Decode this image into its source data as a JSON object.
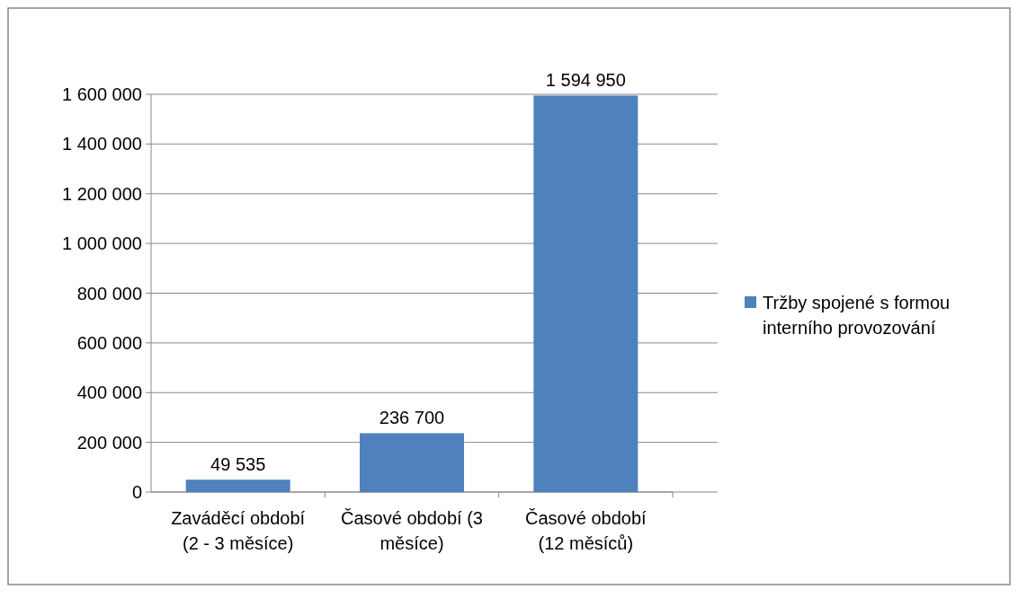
{
  "chart_data": {
    "type": "bar",
    "categories": [
      "Zaváděcí období (2 - 3 měsíce)",
      "Časové období (3 měsíce)",
      "Časové období (12 měsíců)"
    ],
    "series": [
      {
        "name": "Tržby spojené s formou interního provozování",
        "color": "#4f81bd",
        "values": [
          49535,
          236700,
          1594950
        ],
        "value_labels": [
          "49 535",
          "236 700",
          "1 594 950"
        ]
      }
    ],
    "ylim": [
      0,
      1600000
    ],
    "yticks": [
      {
        "value": 0,
        "label": "0"
      },
      {
        "value": 200000,
        "label": "200 000"
      },
      {
        "value": 400000,
        "label": "400 000"
      },
      {
        "value": 600000,
        "label": "600 000"
      },
      {
        "value": 800000,
        "label": "800 000"
      },
      {
        "value": 1000000,
        "label": "1 000 000"
      },
      {
        "value": 1200000,
        "label": "1 200 000"
      },
      {
        "value": 1400000,
        "label": "1 400 000"
      },
      {
        "value": 1600000,
        "label": "1 600 000"
      }
    ],
    "grid": "y",
    "legend": "right"
  }
}
